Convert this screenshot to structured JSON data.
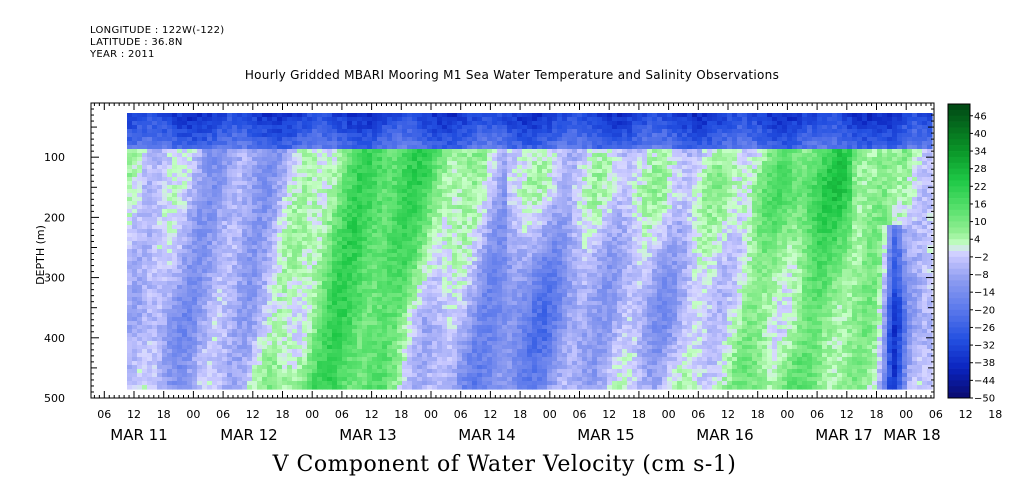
{
  "header": {
    "longitude": "LONGITUDE : 122W(-122)",
    "latitude": "LATITUDE : 36.8N",
    "year": "YEAR : 2011"
  },
  "chart_data": {
    "type": "heatmap",
    "title": "Hourly Gridded MBARI Mooring M1 Sea Water Temperature and Salinity Observations",
    "xlabel": "V Component of Water Velocity (cm s-1)",
    "ylabel": "DEPTH (m)",
    "y_ticks": [
      100,
      200,
      300,
      400,
      500
    ],
    "ylim": [
      500,
      10
    ],
    "y_reversed": true,
    "x_hour_ticks": [
      "06",
      "12",
      "18",
      "00",
      "06",
      "12",
      "18",
      "00",
      "06",
      "12",
      "18",
      "00",
      "06",
      "12",
      "18",
      "00",
      "06",
      "12",
      "18",
      "00",
      "06",
      "12",
      "18",
      "00",
      "06",
      "12",
      "18",
      "00",
      "06",
      "12",
      "18",
      "00"
    ],
    "x_day_labels": [
      "MAR 11",
      "MAR 12",
      "MAR 13",
      "MAR 14",
      "MAR 15",
      "MAR 16",
      "MAR 17",
      "MAR 18"
    ],
    "colorbar_levels": [
      "46",
      "40",
      "34",
      "28",
      "22",
      "16",
      "10",
      "4",
      "-2",
      "-8",
      "-14",
      "-20",
      "-26",
      "-32",
      "-38",
      "-44",
      "-50"
    ],
    "colorbar_range": [
      -50,
      50
    ],
    "colorbar_step": 2,
    "colors": {
      "strong_positive": "#005a1e",
      "positive": "#33dd55",
      "near_zero_positive": "#c0ffc0",
      "near_zero_negative": "#c8c8ff",
      "negative": "#7f8ff0",
      "strong_negative": "#0a1e96"
    },
    "pattern_description": [
      {
        "depth_band": "surface (20-60 m)",
        "value": -30
      },
      {
        "time": "MAR 11 00-06",
        "depth_range": [
          150,
          450
        ],
        "value": 8
      },
      {
        "time": "MAR 14 18-MAR 15 00",
        "depth_range": [
          80,
          450
        ],
        "value": 20
      },
      {
        "time": "MAR 15 12-MAR 16 18",
        "depth_range": [
          80,
          250
        ],
        "value": 22
      },
      {
        "time": "MAR 17 18",
        "depth_range": [
          200,
          480
        ],
        "value": -30
      }
    ]
  }
}
